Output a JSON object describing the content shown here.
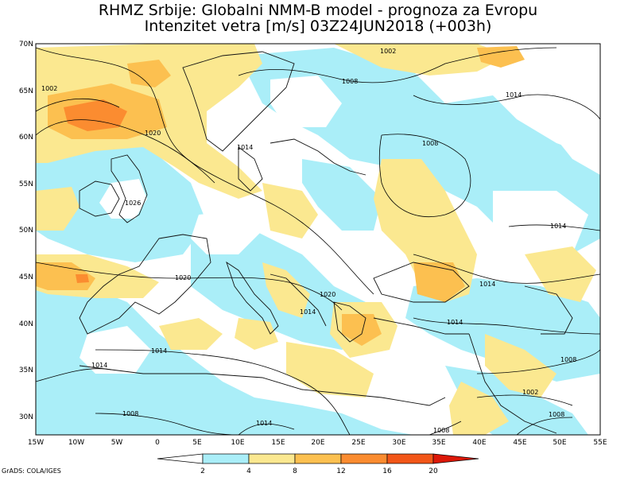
{
  "title_line1": "RHMZ Srbije: Globalni NMM-B model - prognoza za Evropu",
  "title_line2": "Intenzitet vetra [m/s] 03Z24JUN2018 (+003h)",
  "credit": "GrADS: COLA/IGES",
  "lat_labels": [
    "70N",
    "65N",
    "60N",
    "55N",
    "50N",
    "45N",
    "40N",
    "35N",
    "30N"
  ],
  "lon_labels": [
    "15W",
    "10W",
    "5W",
    "0",
    "5E",
    "10E",
    "15E",
    "20E",
    "25E",
    "30E",
    "35E",
    "40E",
    "45E",
    "50E",
    "55E"
  ],
  "colorbar": {
    "ticks": [
      "2",
      "4",
      "8",
      "12",
      "16",
      "20"
    ],
    "colors": [
      "#ffffff",
      "#aaeef8",
      "#fbe890",
      "#fcc050",
      "#fb8c30",
      "#f25618",
      "#dc1808"
    ]
  },
  "isobar_labels": [
    "1002",
    "1008",
    "1014",
    "1020",
    "1026",
    "1020",
    "1014",
    "1014",
    "1008",
    "1014",
    "1008",
    "1014",
    "1020",
    "1014",
    "1014",
    "1002",
    "1002",
    "1008",
    "1014",
    "1008",
    "1008",
    "1014"
  ]
}
